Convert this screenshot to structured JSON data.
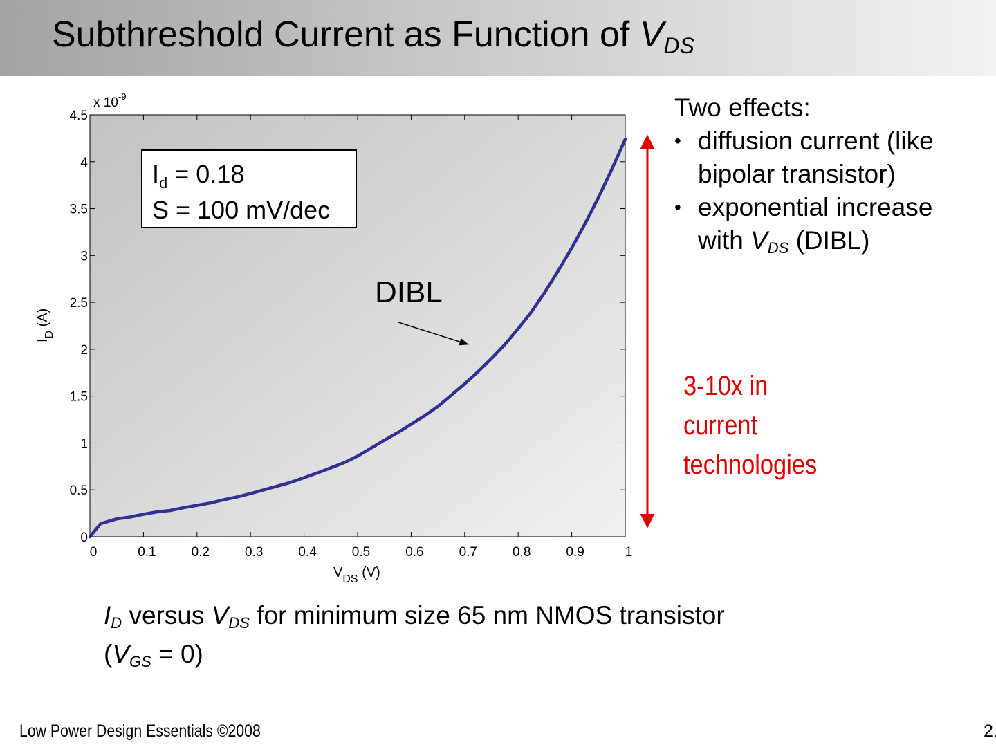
{
  "slide": {
    "title_main": "Subthreshold Current as Function of ",
    "title_var": "V",
    "title_sub": "DS",
    "effects": {
      "heading": "Two effects:",
      "bullet_glyph": "•",
      "item1": " diffusion current (like bipolar transistor)",
      "item2_pre": " exponential increase with ",
      "item2_var": "V",
      "item2_sub": "DS",
      "item2_post": " (DIBL)"
    },
    "red_note": "3-10x in current technologies",
    "caption": {
      "id_var": "I",
      "id_sub": "D",
      "mid": " versus ",
      "vds_var": "V",
      "vds_sub": "DS",
      "rest": " for minimum size 65 nm NMOS transistor",
      "open": "(",
      "vgs_var": "V",
      "vgs_sub": "GS",
      "close": " = 0)"
    },
    "footer_left": "Low Power Design Essentials ©2008",
    "footer_right": "2."
  },
  "chart_data": {
    "type": "line",
    "xlabel_main": "V",
    "xlabel_sub": "DS",
    "xlabel_unit": " (V)",
    "ylabel_main": "I",
    "ylabel_sub": "D",
    "ylabel_unit": " (A)",
    "y_multiplier_base": "x 10",
    "y_multiplier_exp": "-9",
    "xlim": [
      0,
      1
    ],
    "ylim": [
      0,
      4.5
    ],
    "xticks": [
      0,
      0.1,
      0.2,
      0.3,
      0.4,
      0.5,
      0.6,
      0.7,
      0.8,
      0.9,
      1
    ],
    "xtick_labels": [
      "0",
      "0.1",
      "0.2",
      "0.3",
      "0.4",
      "0.5",
      "0.6",
      "0.7",
      "0.8",
      "0.9",
      "1"
    ],
    "yticks": [
      0,
      0.5,
      1,
      1.5,
      2,
      2.5,
      3,
      3.5,
      4,
      4.5
    ],
    "ytick_labels": [
      "0",
      "0.5",
      "1",
      "1.5",
      "2",
      "2.5",
      "3",
      "3.5",
      "4",
      "4.5"
    ],
    "grid": false,
    "series": [
      {
        "color": "#2e3192",
        "x": [
          0,
          0.02,
          0.05,
          0.075,
          0.1,
          0.125,
          0.15,
          0.175,
          0.2,
          0.225,
          0.25,
          0.275,
          0.3,
          0.325,
          0.35,
          0.375,
          0.4,
          0.425,
          0.45,
          0.475,
          0.5,
          0.525,
          0.55,
          0.575,
          0.6,
          0.625,
          0.65,
          0.675,
          0.7,
          0.725,
          0.75,
          0.775,
          0.8,
          0.825,
          0.85,
          0.875,
          0.9,
          0.925,
          0.95,
          0.975,
          1.0
        ],
        "y": [
          0,
          0.14,
          0.19,
          0.21,
          0.24,
          0.265,
          0.28,
          0.31,
          0.335,
          0.36,
          0.395,
          0.425,
          0.46,
          0.5,
          0.54,
          0.58,
          0.63,
          0.68,
          0.735,
          0.79,
          0.86,
          0.945,
          1.03,
          1.11,
          1.2,
          1.29,
          1.39,
          1.51,
          1.63,
          1.76,
          1.9,
          2.05,
          2.22,
          2.4,
          2.61,
          2.84,
          3.08,
          3.34,
          3.62,
          3.92,
          4.24
        ]
      }
    ],
    "info_box_line1_main": "I",
    "info_box_line1_sub": "d",
    "info_box_line1_rest": " = 0.18",
    "info_box_line2": "S = 100 mV/dec",
    "annotation": "DIBL",
    "annotation_point": [
      0.75,
      2.03
    ],
    "span_label_range": [
      0.18,
      4.2
    ]
  }
}
